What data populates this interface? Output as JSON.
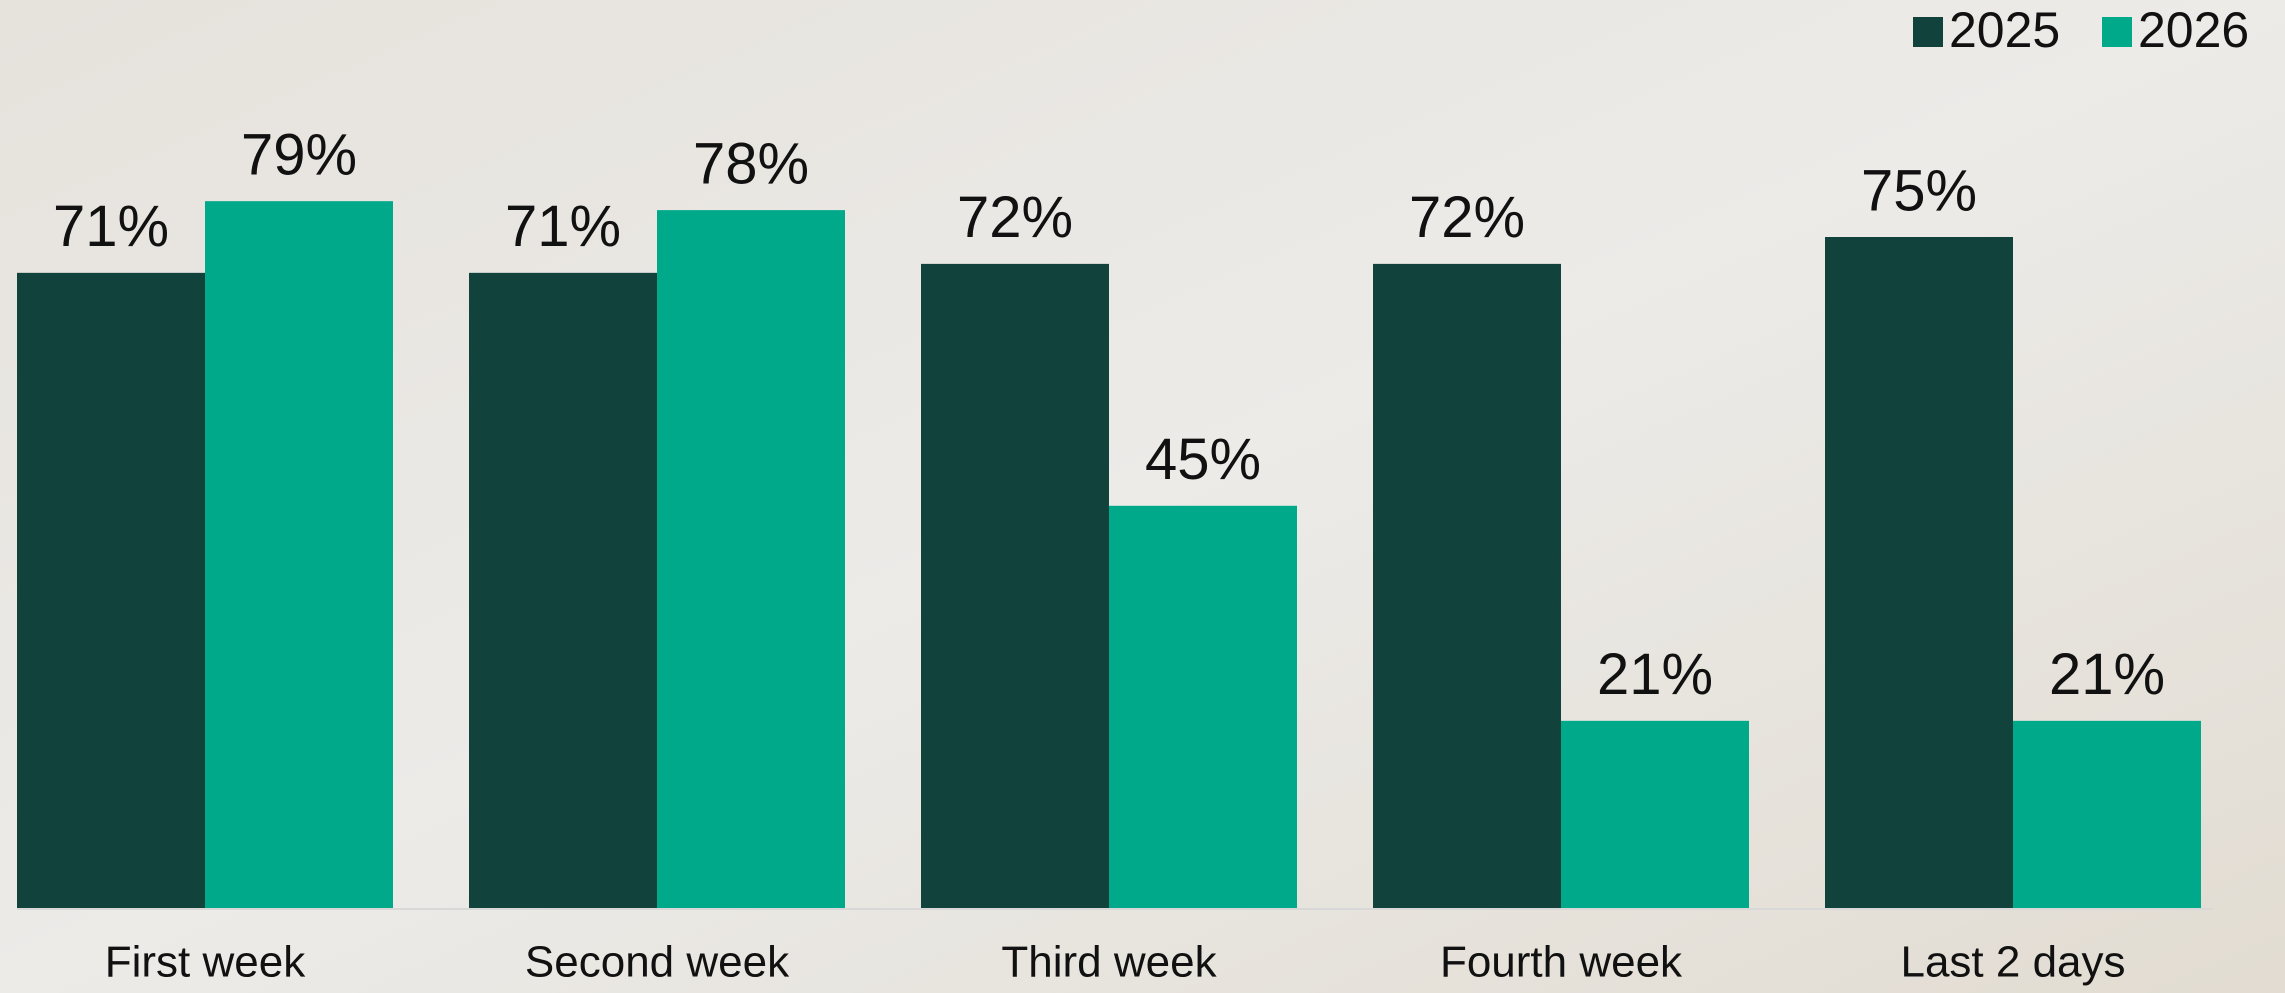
{
  "chart_data": {
    "type": "bar",
    "categories": [
      "First week",
      "Second week",
      "Third week",
      "Fourth week",
      "Last 2 days"
    ],
    "series": [
      {
        "name": "2025",
        "color": "#11423c",
        "values": [
          71,
          71,
          72,
          72,
          75
        ],
        "value_labels": [
          "71%",
          "71%",
          "72%",
          "72%",
          "75%"
        ]
      },
      {
        "name": "2026",
        "color": "#00a98a",
        "values": [
          79,
          78,
          45,
          21,
          21
        ],
        "value_labels": [
          "79%",
          "78%",
          "45%",
          "21%",
          "21%"
        ]
      }
    ],
    "ylim": [
      0,
      100
    ],
    "legend": "top-right"
  }
}
